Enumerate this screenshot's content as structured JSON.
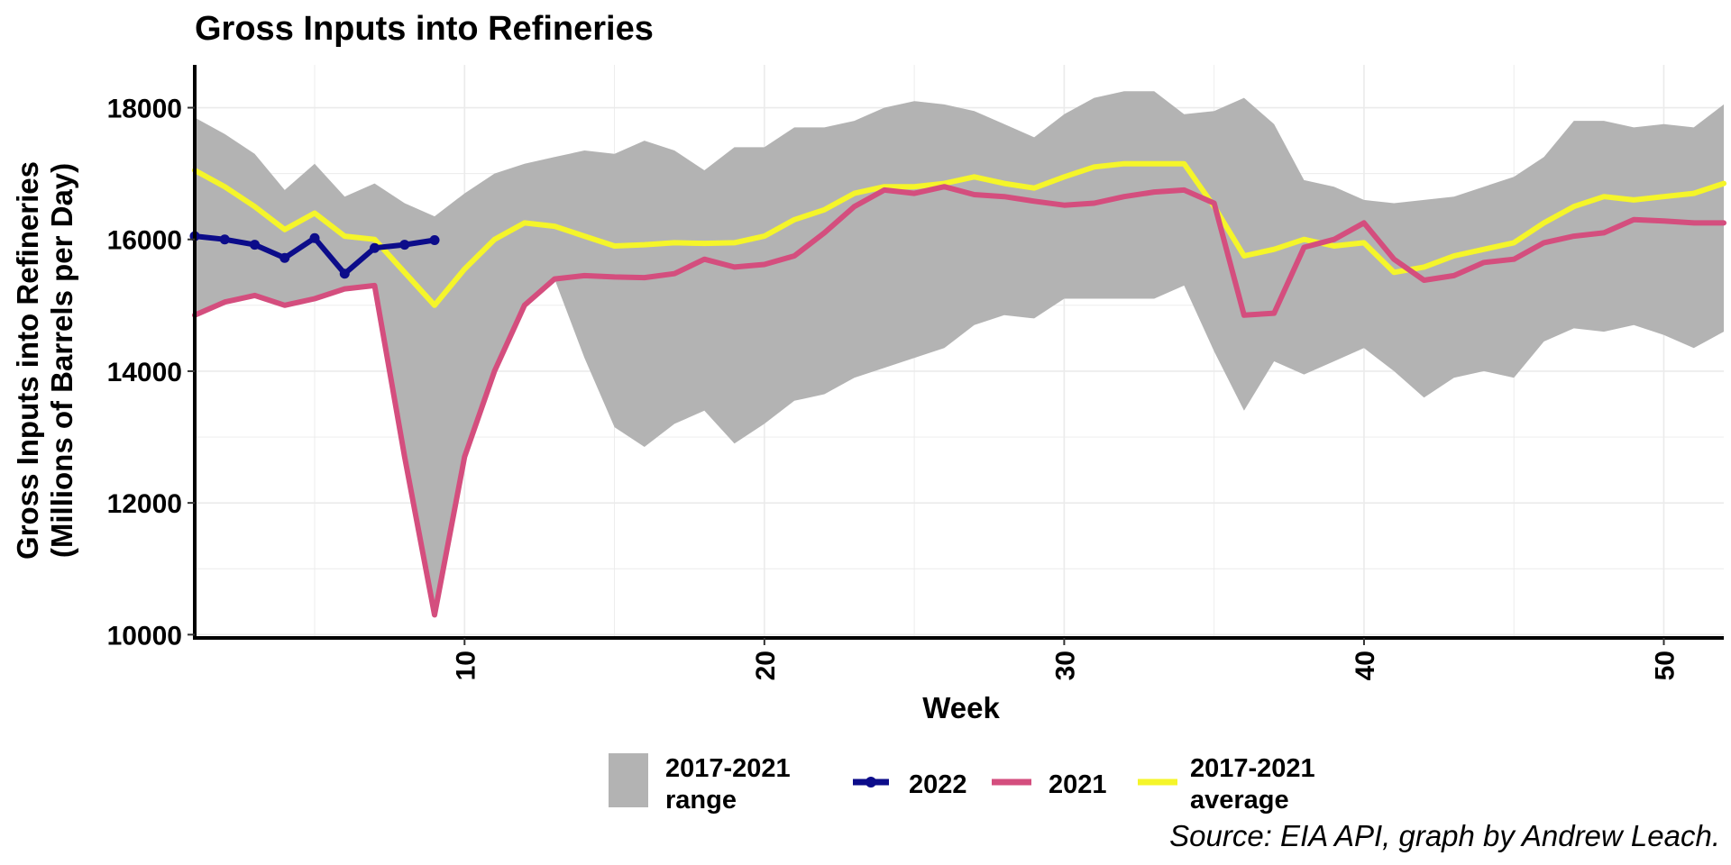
{
  "colors": {
    "range_fill": "#b3b3b3",
    "series_2022": "#0c0c8a",
    "series_2021": "#d44e7e",
    "series_avg": "#f5f52a",
    "grid": "#ebebeb"
  },
  "chart_data": {
    "type": "line",
    "title": "Gross Inputs into Refineries",
    "xlabel": "Week",
    "ylabel_line1": "Gross Inputs into Refineries",
    "ylabel_line2": "(Millions of Barrels per Day)",
    "caption": "Source: EIA API, graph by Andrew Leach.",
    "xlim": [
      1,
      52
    ],
    "ylim": [
      9950,
      18650
    ],
    "x_ticks": [
      10,
      20,
      30,
      40,
      50
    ],
    "y_ticks": [
      10000,
      12000,
      14000,
      16000,
      18000
    ],
    "grid": true,
    "legend_position": "bottom",
    "range": {
      "name_line1": "2017-2021",
      "name_line2": "range",
      "x": [
        1,
        2,
        3,
        4,
        5,
        6,
        7,
        8,
        9,
        10,
        11,
        12,
        13,
        14,
        15,
        16,
        17,
        18,
        19,
        20,
        21,
        22,
        23,
        24,
        25,
        26,
        27,
        28,
        29,
        30,
        31,
        32,
        33,
        34,
        35,
        36,
        37,
        38,
        39,
        40,
        41,
        42,
        43,
        44,
        45,
        46,
        47,
        48,
        49,
        50,
        51,
        52
      ],
      "low": [
        14850,
        15050,
        15150,
        15000,
        15100,
        15250,
        15300,
        12700,
        10300,
        12700,
        14000,
        15000,
        15400,
        14200,
        13150,
        12850,
        13200,
        13400,
        12900,
        13200,
        13550,
        13650,
        13900,
        14050,
        14200,
        14350,
        14700,
        14850,
        14800,
        15100,
        15100,
        15100,
        15100,
        15300,
        14300,
        13400,
        14150,
        13950,
        14150,
        14350,
        14000,
        13600,
        13900,
        14000,
        13900,
        14450,
        14650,
        14600,
        14700,
        14550,
        14350,
        14600
      ],
      "high": [
        17850,
        17600,
        17300,
        16750,
        17150,
        16650,
        16850,
        16550,
        16350,
        16700,
        17000,
        17150,
        17250,
        17350,
        17300,
        17500,
        17350,
        17050,
        17400,
        17400,
        17700,
        17700,
        17800,
        18000,
        18100,
        18050,
        17950,
        17750,
        17550,
        17900,
        18150,
        18250,
        18250,
        17900,
        17950,
        18150,
        17750,
        16900,
        16800,
        16600,
        16550,
        16600,
        16650,
        16800,
        16950,
        17250,
        17800,
        17800,
        17700,
        17750,
        17700,
        18050
      ]
    },
    "series": [
      {
        "name": "2022",
        "x": [
          1,
          2,
          3,
          4,
          5,
          6,
          7,
          8,
          9
        ],
        "values": [
          16050,
          16000,
          15920,
          15720,
          16020,
          15480,
          15870,
          15920,
          15990
        ]
      },
      {
        "name": "2021",
        "x": [
          1,
          2,
          3,
          4,
          5,
          6,
          7,
          8,
          9,
          10,
          11,
          12,
          13,
          14,
          15,
          16,
          17,
          18,
          19,
          20,
          21,
          22,
          23,
          24,
          25,
          26,
          27,
          28,
          29,
          30,
          31,
          32,
          33,
          34,
          35,
          36,
          37,
          38,
          39,
          40,
          41,
          42,
          43,
          44,
          45,
          46,
          47,
          48,
          49,
          50,
          51,
          52
        ],
        "values": [
          14850,
          15050,
          15150,
          15000,
          15100,
          15250,
          15300,
          12700,
          10300,
          12700,
          14000,
          15000,
          15400,
          15450,
          15430,
          15420,
          15480,
          15700,
          15580,
          15620,
          15750,
          16100,
          16500,
          16750,
          16700,
          16800,
          16680,
          16650,
          16580,
          16520,
          16550,
          16650,
          16720,
          16750,
          16550,
          14850,
          14880,
          15880,
          16000,
          16250,
          15700,
          15380,
          15450,
          15650,
          15700,
          15950,
          16050,
          16100,
          16300,
          16280,
          16250,
          16250
        ]
      },
      {
        "name_line1": "2017-2021",
        "name_line2": "average",
        "x": [
          1,
          2,
          3,
          4,
          5,
          6,
          7,
          8,
          9,
          10,
          11,
          12,
          13,
          14,
          15,
          16,
          17,
          18,
          19,
          20,
          21,
          22,
          23,
          24,
          25,
          26,
          27,
          28,
          29,
          30,
          31,
          32,
          33,
          34,
          35,
          36,
          37,
          38,
          39,
          40,
          41,
          42,
          43,
          44,
          45,
          46,
          47,
          48,
          49,
          50,
          51,
          52
        ],
        "values": [
          17050,
          16800,
          16500,
          16150,
          16400,
          16050,
          16000,
          15500,
          15000,
          15550,
          16000,
          16250,
          16200,
          16050,
          15900,
          15920,
          15950,
          15940,
          15950,
          16050,
          16300,
          16450,
          16700,
          16800,
          16800,
          16850,
          16950,
          16850,
          16780,
          16950,
          17100,
          17150,
          17150,
          17150,
          16500,
          15750,
          15850,
          16000,
          15900,
          15950,
          15500,
          15580,
          15750,
          15850,
          15950,
          16250,
          16500,
          16650,
          16600,
          16650,
          16700,
          16850
        ]
      }
    ]
  }
}
